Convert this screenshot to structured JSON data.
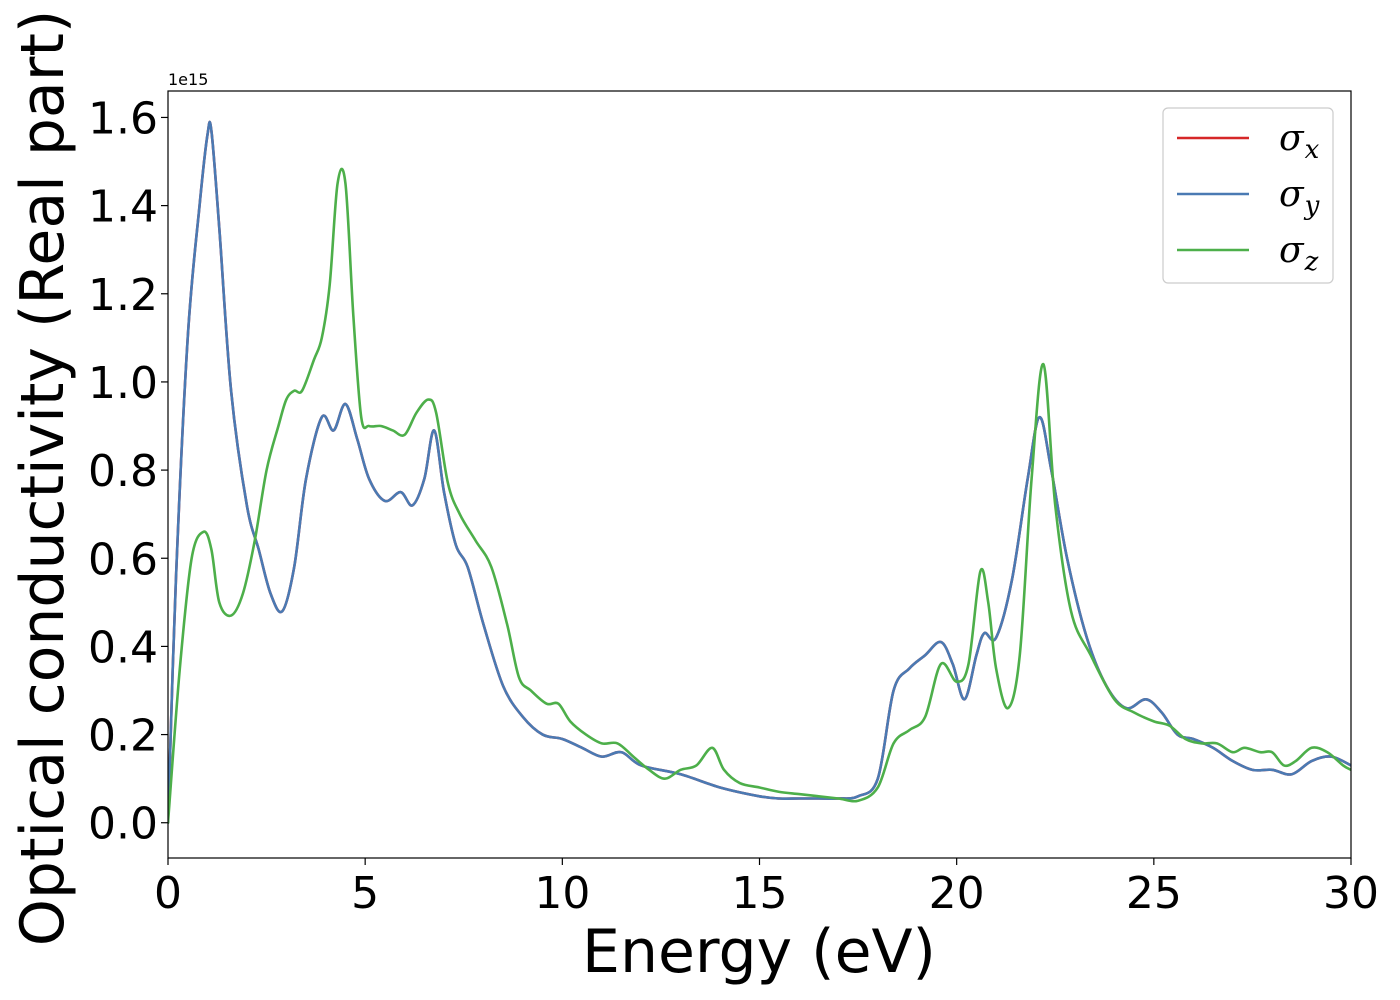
{
  "chart_data": {
    "type": "line",
    "xlabel": "Energy (eV)",
    "ylabel": "Optical conductivity (Real part)",
    "y_offset_text": "1e15",
    "xlim": [
      0,
      30
    ],
    "ylim": [
      -0.08,
      1.66
    ],
    "x_ticks": [
      0,
      5,
      10,
      15,
      20,
      25,
      30
    ],
    "x_tick_labels": [
      "0",
      "5",
      "10",
      "15",
      "20",
      "25",
      "30"
    ],
    "y_ticks": [
      0.0,
      0.2,
      0.4,
      0.6,
      0.8,
      1.0,
      1.2,
      1.4,
      1.6
    ],
    "y_tick_labels": [
      "0.0",
      "0.2",
      "0.4",
      "0.6",
      "0.8",
      "1.0",
      "1.2",
      "1.4",
      "1.6"
    ],
    "grid": false,
    "legend_position": "top-right",
    "series": [
      {
        "name": "σx",
        "symbol": "σ",
        "subscript": "x",
        "color": "#d62728",
        "x": [
          0,
          0.2,
          0.5,
          0.8,
          1.0,
          1.1,
          1.3,
          1.6,
          2.0,
          2.3,
          2.6,
          2.9,
          3.2,
          3.5,
          3.9,
          4.2,
          4.5,
          4.8,
          5.1,
          5.5,
          5.9,
          6.2,
          6.5,
          6.75,
          7.0,
          7.3,
          7.6,
          8.0,
          8.5,
          9.0,
          9.5,
          10.0,
          10.5,
          11.0,
          11.5,
          12.0,
          13.0,
          14.0,
          15.0,
          15.5,
          16.0,
          16.5,
          17.0,
          17.5,
          18.0,
          18.4,
          18.8,
          19.2,
          19.6,
          19.9,
          20.2,
          20.5,
          20.7,
          21.0,
          21.4,
          21.8,
          22.1,
          22.4,
          22.8,
          23.3,
          23.8,
          24.3,
          24.8,
          25.2,
          25.6,
          26.0,
          26.5,
          27.0,
          27.5,
          28.0,
          28.5,
          29.0,
          29.5,
          30.0
        ],
        "y": [
          0.0,
          0.55,
          1.1,
          1.4,
          1.56,
          1.57,
          1.35,
          0.98,
          0.72,
          0.62,
          0.52,
          0.48,
          0.58,
          0.78,
          0.92,
          0.89,
          0.95,
          0.87,
          0.78,
          0.73,
          0.75,
          0.72,
          0.78,
          0.89,
          0.75,
          0.63,
          0.58,
          0.45,
          0.31,
          0.24,
          0.2,
          0.19,
          0.17,
          0.15,
          0.16,
          0.13,
          0.11,
          0.08,
          0.06,
          0.055,
          0.055,
          0.055,
          0.055,
          0.06,
          0.1,
          0.3,
          0.35,
          0.38,
          0.41,
          0.36,
          0.28,
          0.38,
          0.43,
          0.42,
          0.55,
          0.78,
          0.92,
          0.8,
          0.6,
          0.42,
          0.31,
          0.26,
          0.28,
          0.25,
          0.2,
          0.19,
          0.17,
          0.14,
          0.12,
          0.12,
          0.11,
          0.14,
          0.15,
          0.13
        ]
      },
      {
        "name": "σy",
        "symbol": "σ",
        "subscript": "y",
        "color": "#4a7ab3",
        "x": [
          0,
          0.2,
          0.5,
          0.8,
          1.0,
          1.1,
          1.3,
          1.6,
          2.0,
          2.3,
          2.6,
          2.9,
          3.2,
          3.5,
          3.9,
          4.2,
          4.5,
          4.8,
          5.1,
          5.5,
          5.9,
          6.2,
          6.5,
          6.75,
          7.0,
          7.3,
          7.6,
          8.0,
          8.5,
          9.0,
          9.5,
          10.0,
          10.5,
          11.0,
          11.5,
          12.0,
          13.0,
          14.0,
          15.0,
          15.5,
          16.0,
          16.5,
          17.0,
          17.5,
          18.0,
          18.4,
          18.8,
          19.2,
          19.6,
          19.9,
          20.2,
          20.5,
          20.7,
          21.0,
          21.4,
          21.8,
          22.1,
          22.4,
          22.8,
          23.3,
          23.8,
          24.3,
          24.8,
          25.2,
          25.6,
          26.0,
          26.5,
          27.0,
          27.5,
          28.0,
          28.5,
          29.0,
          29.5,
          30.0
        ],
        "y": [
          0.0,
          0.55,
          1.1,
          1.4,
          1.56,
          1.57,
          1.35,
          0.98,
          0.72,
          0.62,
          0.52,
          0.48,
          0.58,
          0.78,
          0.92,
          0.89,
          0.95,
          0.87,
          0.78,
          0.73,
          0.75,
          0.72,
          0.78,
          0.89,
          0.75,
          0.63,
          0.58,
          0.45,
          0.31,
          0.24,
          0.2,
          0.19,
          0.17,
          0.15,
          0.16,
          0.13,
          0.11,
          0.08,
          0.06,
          0.055,
          0.055,
          0.055,
          0.055,
          0.06,
          0.1,
          0.3,
          0.35,
          0.38,
          0.41,
          0.36,
          0.28,
          0.38,
          0.43,
          0.42,
          0.55,
          0.78,
          0.92,
          0.8,
          0.6,
          0.42,
          0.31,
          0.26,
          0.28,
          0.25,
          0.2,
          0.19,
          0.17,
          0.14,
          0.12,
          0.12,
          0.11,
          0.14,
          0.15,
          0.13
        ]
      },
      {
        "name": "σz",
        "symbol": "σ",
        "subscript": "z",
        "color": "#4daf4a",
        "x": [
          0,
          0.3,
          0.6,
          0.9,
          1.1,
          1.3,
          1.6,
          1.9,
          2.2,
          2.5,
          2.8,
          3.0,
          3.2,
          3.4,
          3.7,
          3.9,
          4.1,
          4.3,
          4.5,
          4.7,
          4.9,
          5.1,
          5.4,
          5.7,
          6.0,
          6.3,
          6.6,
          6.8,
          7.1,
          7.4,
          7.8,
          8.2,
          8.6,
          8.9,
          9.2,
          9.6,
          9.9,
          10.2,
          10.6,
          11.0,
          11.4,
          11.8,
          12.2,
          12.6,
          13.0,
          13.4,
          13.8,
          14.1,
          14.5,
          15.0,
          15.5,
          16.0,
          16.5,
          17.0,
          17.5,
          18.0,
          18.4,
          18.8,
          19.2,
          19.6,
          20.0,
          20.3,
          20.6,
          20.8,
          21.0,
          21.3,
          21.6,
          21.9,
          22.2,
          22.5,
          22.9,
          23.4,
          24.0,
          24.5,
          25.0,
          25.4,
          25.8,
          26.2,
          26.6,
          27.0,
          27.3,
          27.7,
          28.0,
          28.3,
          28.6,
          29.0,
          29.4,
          29.8,
          30.0
        ],
        "y": [
          0.0,
          0.35,
          0.6,
          0.66,
          0.62,
          0.5,
          0.47,
          0.52,
          0.64,
          0.8,
          0.9,
          0.96,
          0.98,
          0.98,
          1.05,
          1.1,
          1.22,
          1.45,
          1.45,
          1.15,
          0.92,
          0.9,
          0.9,
          0.89,
          0.88,
          0.93,
          0.96,
          0.93,
          0.77,
          0.7,
          0.64,
          0.58,
          0.45,
          0.33,
          0.3,
          0.27,
          0.27,
          0.23,
          0.2,
          0.18,
          0.18,
          0.15,
          0.12,
          0.1,
          0.12,
          0.13,
          0.17,
          0.12,
          0.09,
          0.08,
          0.07,
          0.065,
          0.06,
          0.055,
          0.05,
          0.08,
          0.18,
          0.21,
          0.24,
          0.36,
          0.32,
          0.36,
          0.57,
          0.5,
          0.35,
          0.26,
          0.38,
          0.78,
          1.04,
          0.72,
          0.48,
          0.38,
          0.28,
          0.25,
          0.23,
          0.22,
          0.19,
          0.18,
          0.18,
          0.16,
          0.17,
          0.16,
          0.16,
          0.13,
          0.14,
          0.17,
          0.16,
          0.13,
          0.12
        ]
      }
    ]
  }
}
